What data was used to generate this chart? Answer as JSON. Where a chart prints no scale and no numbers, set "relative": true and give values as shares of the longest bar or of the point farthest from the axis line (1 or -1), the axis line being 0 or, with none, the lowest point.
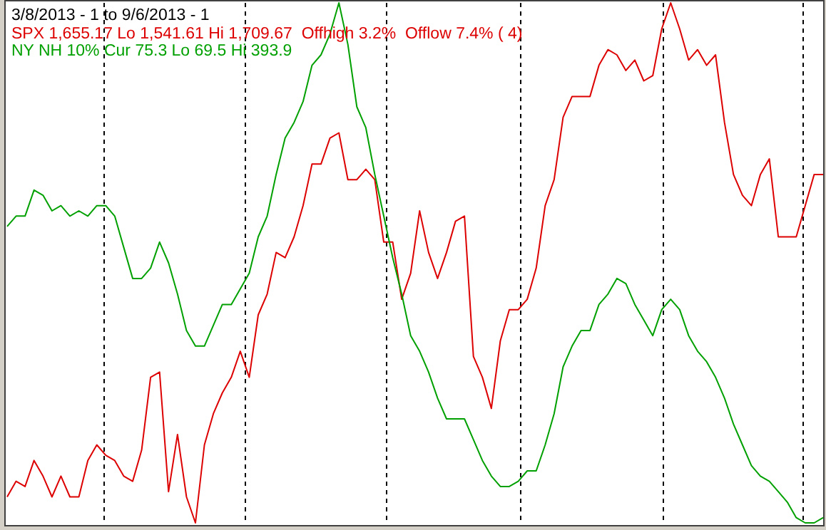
{
  "chart_data": {
    "type": "line",
    "title": "3/8/2013 - 1 to 9/6/2013 - 1",
    "relative": true,
    "categories": [
      null,
      null,
      null,
      null,
      null,
      null,
      null,
      null,
      null,
      null,
      null,
      null,
      null,
      null,
      null,
      null,
      null,
      null,
      null,
      null,
      null,
      null,
      null,
      null,
      null,
      null,
      null,
      null,
      null,
      null,
      null,
      null,
      null,
      null,
      null,
      null,
      null,
      null,
      null,
      null,
      null,
      null,
      null,
      null,
      null,
      null,
      null,
      null,
      null,
      null,
      null,
      null,
      null,
      null,
      null,
      null,
      null,
      null,
      null,
      null,
      null,
      null,
      null,
      null,
      null,
      null,
      null,
      null,
      null,
      null,
      null,
      null,
      null,
      null,
      null,
      null,
      null,
      null,
      null,
      null,
      null,
      null,
      null,
      null,
      null,
      null,
      null,
      null,
      null,
      null,
      null,
      null
    ],
    "grid": "x",
    "series": [
      {
        "name": "SPX 1,655.17 Lo 1,541.61 Hi 1,709.67  Offhigh 3.2%  Offlow 7.4% ( 4)",
        "color": "#dd0000",
        "values": [
          0.05,
          0.08,
          0.07,
          0.12,
          0.09,
          0.05,
          0.09,
          0.05,
          0.05,
          0.12,
          0.15,
          0.13,
          0.12,
          0.09,
          0.08,
          0.14,
          0.28,
          0.29,
          0.06,
          0.17,
          0.05,
          0,
          0.15,
          0.21,
          0.25,
          0.28,
          0.33,
          0.28,
          0.4,
          0.44,
          0.52,
          0.51,
          0.55,
          0.61,
          0.69,
          0.69,
          0.74,
          0.75,
          0.66,
          0.66,
          0.68,
          0.66,
          0.54,
          0.54,
          0.43,
          0.48,
          0.6,
          0.52,
          0.47,
          0.52,
          0.58,
          0.59,
          0.32,
          0.28,
          0.22,
          0.35,
          0.41,
          0.41,
          0.43,
          0.49,
          0.61,
          0.66,
          0.78,
          0.82,
          0.82,
          0.82,
          0.88,
          0.91,
          0.9,
          0.87,
          0.89,
          0.85,
          0.86,
          0.95,
          1,
          0.95,
          0.89,
          0.91,
          0.88,
          0.9,
          0.77,
          0.67,
          0.63,
          0.61,
          0.67,
          0.7,
          0.55,
          0.55,
          0.55,
          0.61,
          0.67,
          0.67
        ]
      },
      {
        "name": "NY NH 10% Cur 75.3 Lo 69.5 Hi 393.9",
        "color": "#00a000",
        "values": [
          0.57,
          0.59,
          0.59,
          0.64,
          0.63,
          0.6,
          0.61,
          0.59,
          0.6,
          0.59,
          0.61,
          0.61,
          0.59,
          0.53,
          0.47,
          0.47,
          0.49,
          0.54,
          0.5,
          0.44,
          0.37,
          0.34,
          0.34,
          0.38,
          0.42,
          0.42,
          0.45,
          0.48,
          0.55,
          0.59,
          0.67,
          0.74,
          0.77,
          0.81,
          0.88,
          0.9,
          0.94,
          1,
          0.92,
          0.8,
          0.76,
          0.67,
          0.59,
          0.51,
          0.44,
          0.36,
          0.33,
          0.29,
          0.24,
          0.2,
          0.2,
          0.2,
          0.16,
          0.12,
          0.09,
          0.07,
          0.07,
          0.08,
          0.1,
          0.1,
          0.15,
          0.21,
          0.3,
          0.34,
          0.37,
          0.37,
          0.42,
          0.44,
          0.47,
          0.46,
          0.42,
          0.39,
          0.36,
          0.41,
          0.43,
          0.41,
          0.36,
          0.33,
          0.31,
          0.28,
          0.24,
          0.19,
          0.15,
          0.11,
          0.09,
          0.08,
          0.06,
          0.04,
          0.01,
          0,
          0,
          0.01
        ]
      }
    ]
  }
}
